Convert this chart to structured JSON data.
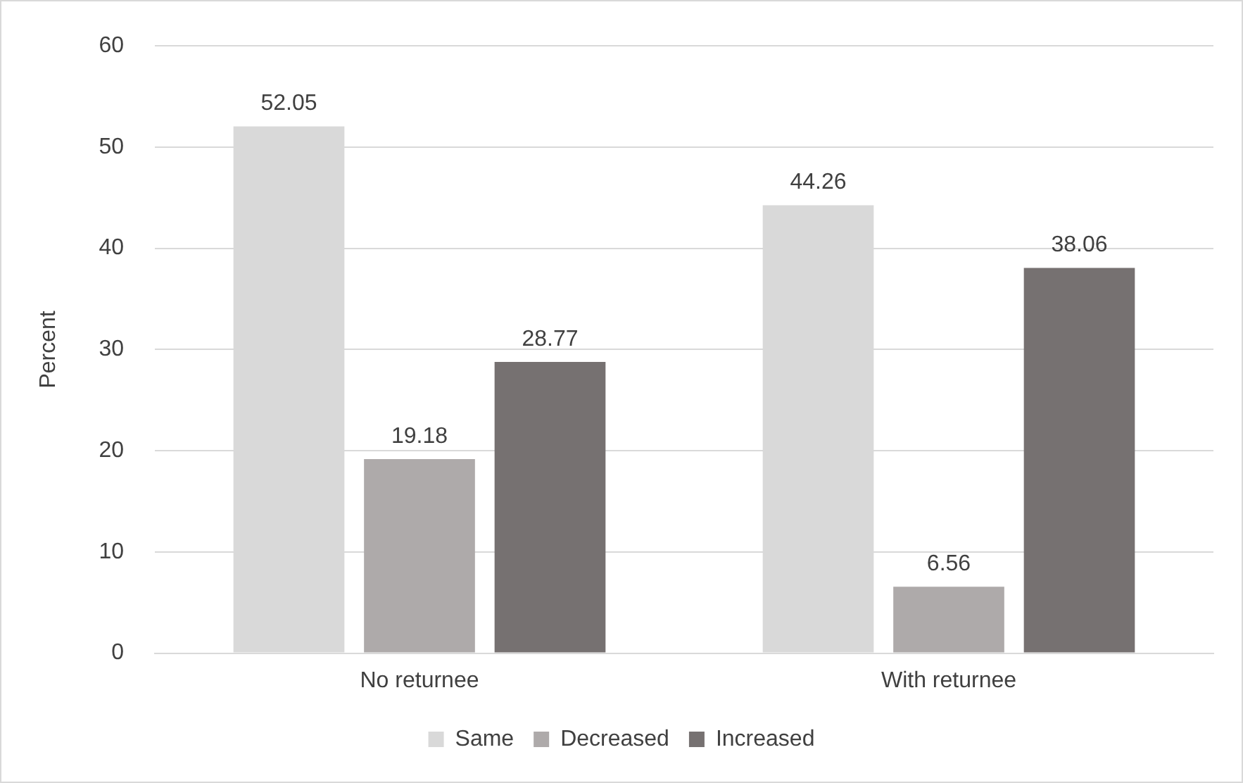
{
  "chart_data": {
    "type": "bar",
    "ylabel": "Percent",
    "categories": [
      "No returnee",
      "With returnee"
    ],
    "series": [
      {
        "name": "Same",
        "color": "#d9d9d9",
        "values": [
          52.05,
          44.26
        ]
      },
      {
        "name": "Decreased",
        "color": "#aeaaaa",
        "values": [
          19.18,
          6.56
        ]
      },
      {
        "name": "Increased",
        "color": "#767171",
        "values": [
          28.77,
          38.06
        ]
      }
    ],
    "ylim": [
      0,
      60
    ],
    "yticks": [
      0,
      10,
      20,
      30,
      40,
      50,
      60
    ],
    "grid": "y",
    "legend": "bottom",
    "data_labels": true
  }
}
